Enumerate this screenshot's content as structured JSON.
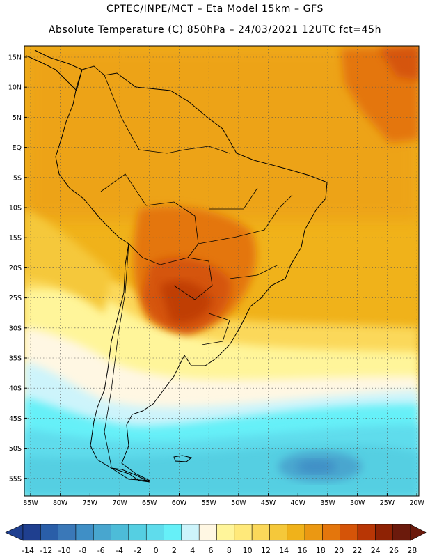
{
  "header": {
    "line1": "CPTEC/INPE/MCT –  Eta Model 15km – GFS",
    "line2": "Absolute Temperature (C) 850hPa – 24/03/2021 12UTC fct=45h"
  },
  "map": {
    "variable": "Absolute Temperature",
    "units": "C",
    "level": "850hPa",
    "model": "Eta Model 15km",
    "boundary_source": "GFS",
    "run": "24/03/2021 12UTC",
    "forecast": "fct=45h",
    "lat_labels": [
      "15N",
      "10N",
      "5N",
      "EQ",
      "5S",
      "10S",
      "15S",
      "20S",
      "25S",
      "30S",
      "35S",
      "40S",
      "45S",
      "50S",
      "55S"
    ],
    "lon_labels": [
      "85W",
      "80W",
      "75W",
      "70W",
      "65W",
      "60W",
      "55W",
      "50W",
      "45W",
      "40W",
      "35W",
      "30W",
      "25W",
      "20W"
    ]
  },
  "legend": {
    "labels": [
      "-14",
      "-12",
      "-10",
      "-8",
      "-6",
      "-4",
      "-2",
      "0",
      "2",
      "4",
      "6",
      "8",
      "10",
      "12",
      "14",
      "16",
      "18",
      "20",
      "22",
      "24",
      "26",
      "28"
    ],
    "colors": [
      "#1f3f8f",
      "#2a5ea8",
      "#3a78b8",
      "#3f8fc6",
      "#48a6cf",
      "#4dbcd8",
      "#55cfe2",
      "#5fdcec",
      "#66f0f8",
      "#cdf4fb",
      "#fff7e3",
      "#fff59a",
      "#ffe97a",
      "#fbd85a",
      "#f5c83a",
      "#f0b21a",
      "#eb9812",
      "#e4760c",
      "#d55408",
      "#b83605",
      "#8e2204",
      "#6b1a0c"
    ]
  }
}
